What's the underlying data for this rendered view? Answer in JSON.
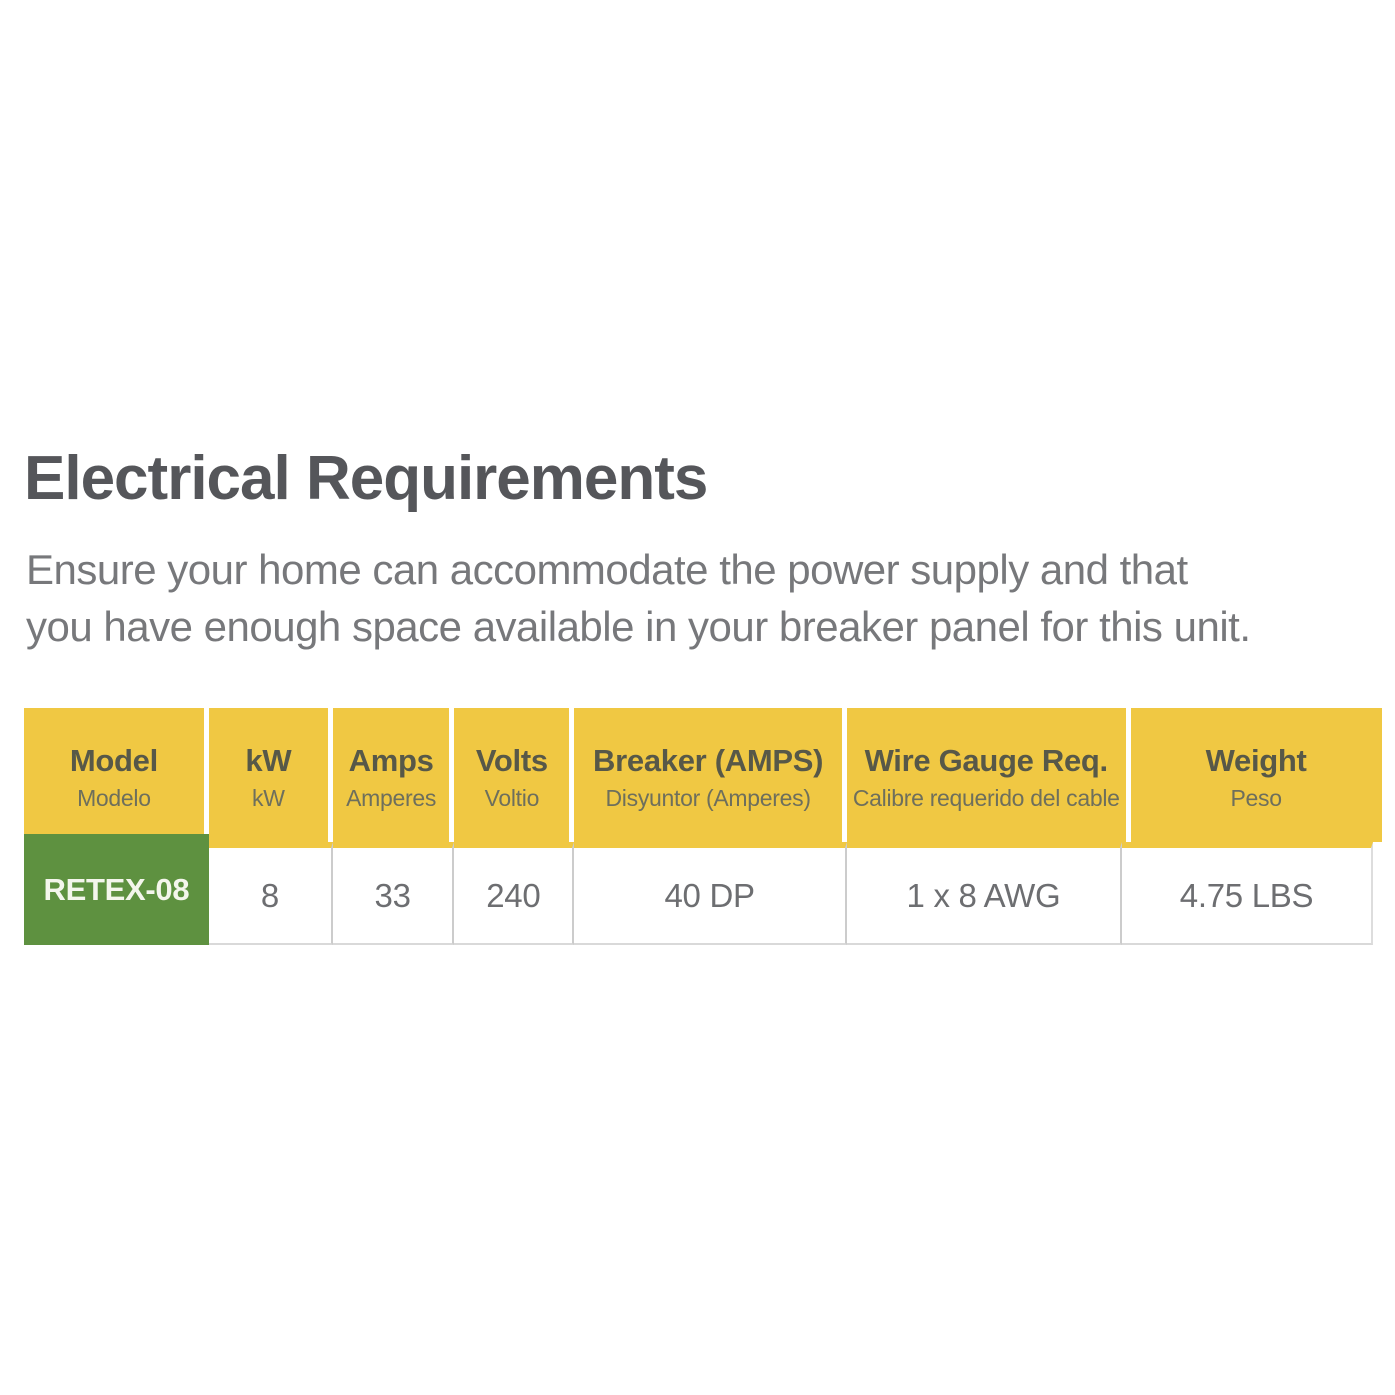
{
  "header": {
    "title": "Electrical Requirements"
  },
  "intro": {
    "line1": "Ensure your home can accommodate the power supply and that",
    "line2": "you have enough space available in your breaker panel for this unit."
  },
  "colors": {
    "header_yellow": "#f0c843",
    "model_green": "#5e9140",
    "title_gray": "#55565a",
    "body_gray": "#77787b",
    "divider_gray": "#cccccc"
  },
  "table": {
    "columns": [
      {
        "label": "Model",
        "sublabel": "Modelo"
      },
      {
        "label": "kW",
        "sublabel": "kW"
      },
      {
        "label": "Amps",
        "sublabel": "Amperes"
      },
      {
        "label": "Volts",
        "sublabel": "Voltio"
      },
      {
        "label": "Breaker (AMPS)",
        "sublabel": "Disyuntor (Amperes)"
      },
      {
        "label": "Wire Gauge Req.",
        "sublabel": "Calibre requerido del cable"
      },
      {
        "label": "Weight",
        "sublabel": "Peso"
      }
    ],
    "rows": [
      {
        "model": "RETEX-08",
        "kw": "8",
        "amps": "33",
        "volts": "240",
        "breaker": "40 DP",
        "wire_gauge": "1 x 8 AWG",
        "weight": "4.75 LBS"
      }
    ]
  }
}
